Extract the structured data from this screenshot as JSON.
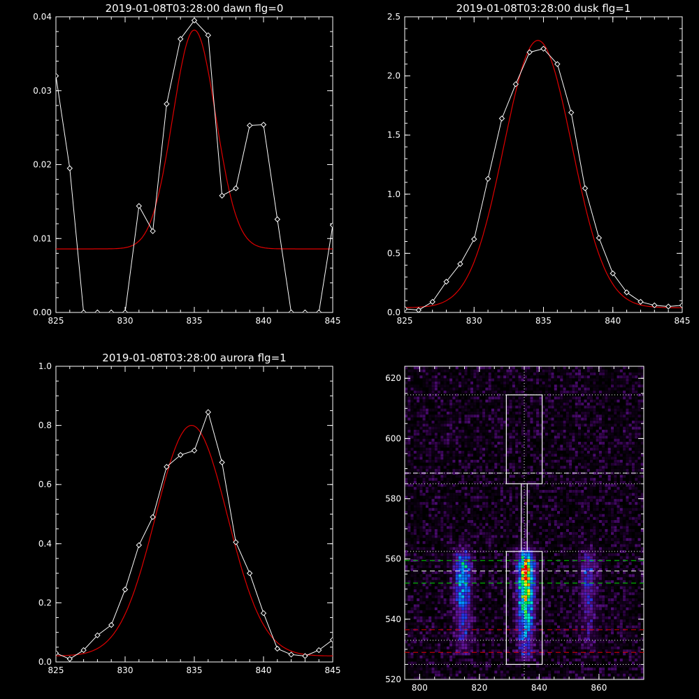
{
  "chart_data": [
    {
      "id": "dawn",
      "type": "line",
      "title": "2019-01-08T03:28:00 dawn flg=0",
      "xlim": [
        825,
        845
      ],
      "ylim": [
        0,
        0.04
      ],
      "xticks": [
        825,
        830,
        835,
        840,
        845
      ],
      "yticks": [
        0.0,
        0.01,
        0.02,
        0.03,
        0.04
      ],
      "ytick_labels": [
        "0.00",
        "0.01",
        "0.02",
        "0.03",
        "0.04"
      ],
      "series": [
        {
          "kind": "data",
          "color": "#ffffff",
          "markers": "diamond",
          "x": [
            825,
            826,
            827,
            828,
            829,
            830,
            831,
            832,
            833,
            834,
            835,
            836,
            837,
            838,
            839,
            840,
            841,
            842,
            843,
            844,
            845
          ],
          "y": [
            0.032,
            0.0195,
            0.0,
            0.0,
            0.0,
            0.0,
            0.0144,
            0.011,
            0.0282,
            0.037,
            0.0395,
            0.0375,
            0.0158,
            0.0168,
            0.0253,
            0.0254,
            0.0126,
            0.0,
            0.0,
            0.0,
            0.0118
          ]
        },
        {
          "kind": "fit",
          "color": "#e00000",
          "gaussian": {
            "amplitude": 0.0296,
            "center": 835.0,
            "sigma": 1.55,
            "offset": 0.0086
          }
        }
      ]
    },
    {
      "id": "dusk",
      "type": "line",
      "title": "2019-01-08T03:28:00 dusk flg=1",
      "xlim": [
        825,
        845
      ],
      "ylim": [
        0,
        2.5
      ],
      "xticks": [
        825,
        830,
        835,
        840,
        845
      ],
      "yticks": [
        0.0,
        0.5,
        1.0,
        1.5,
        2.0,
        2.5
      ],
      "ytick_labels": [
        "0.0",
        "0.5",
        "1.0",
        "1.5",
        "2.0",
        "2.5"
      ],
      "series": [
        {
          "kind": "data",
          "color": "#ffffff",
          "markers": "diamond",
          "x": [
            825,
            826,
            827,
            828,
            829,
            830,
            831,
            832,
            833,
            834,
            835,
            836,
            837,
            838,
            839,
            840,
            841,
            842,
            843,
            844,
            845
          ],
          "y": [
            0.03,
            0.02,
            0.09,
            0.26,
            0.41,
            0.62,
            1.13,
            1.64,
            1.93,
            2.2,
            2.23,
            2.1,
            1.69,
            1.05,
            0.63,
            0.33,
            0.17,
            0.09,
            0.06,
            0.05,
            0.06
          ]
        },
        {
          "kind": "fit",
          "color": "#e00000",
          "gaussian": {
            "amplitude": 2.26,
            "center": 834.6,
            "sigma": 2.45,
            "offset": 0.04
          }
        }
      ]
    },
    {
      "id": "aurora",
      "type": "line",
      "title": "2019-01-08T03:28:00 aurora flg=1",
      "xlim": [
        825,
        845
      ],
      "ylim": [
        0,
        1.0
      ],
      "xticks": [
        825,
        830,
        835,
        840,
        845
      ],
      "yticks": [
        0.0,
        0.2,
        0.4,
        0.6,
        0.8,
        1.0
      ],
      "ytick_labels": [
        "0.0",
        "0.2",
        "0.4",
        "0.6",
        "0.8",
        "1.0"
      ],
      "series": [
        {
          "kind": "data",
          "color": "#ffffff",
          "markers": "diamond",
          "x": [
            825,
            826,
            827,
            828,
            829,
            830,
            831,
            832,
            833,
            834,
            835,
            836,
            837,
            838,
            839,
            840,
            841,
            842,
            843,
            844,
            845
          ],
          "y": [
            0.03,
            0.01,
            0.04,
            0.09,
            0.125,
            0.245,
            0.395,
            0.49,
            0.66,
            0.7,
            0.715,
            0.845,
            0.675,
            0.405,
            0.3,
            0.165,
            0.045,
            0.025,
            0.02,
            0.04,
            0.075
          ]
        },
        {
          "kind": "fit",
          "color": "#e00000",
          "gaussian": {
            "amplitude": 0.78,
            "center": 834.8,
            "sigma": 2.6,
            "offset": 0.02
          }
        }
      ]
    },
    {
      "id": "spectrum-image",
      "type": "heatmap",
      "title": "",
      "xlim": [
        795,
        875
      ],
      "ylim": [
        520,
        624
      ],
      "xticks": [
        800,
        820,
        840,
        860
      ],
      "yticks": [
        520,
        540,
        560,
        580,
        600,
        620
      ],
      "colormap": "rainbow (black-purple-blue-cyan-green-yellow-red)",
      "bands": [
        {
          "center_x": 814,
          "y_range": [
            528,
            566
          ],
          "peak_y": 557,
          "peak_level": 0.55
        },
        {
          "center_x": 835,
          "y_range": [
            526,
            570
          ],
          "peak_y": 557,
          "peak_level": 1.0
        },
        {
          "center_x": 856,
          "y_range": [
            530,
            568
          ],
          "peak_y": 557,
          "peak_level": 0.3
        }
      ],
      "overlays": {
        "vertical_dotted_x": 835,
        "dotted_hlines_y": [
          614.5,
          588.5,
          585,
          562.5,
          533,
          525
        ],
        "white_dashed_y": [
          588.5,
          556
        ],
        "green_dashed_y": [
          559.5,
          552
        ],
        "red_dashed_y": [
          536.5,
          529
        ],
        "white_boxes": [
          {
            "x": [
              829,
              841
            ],
            "y": [
              585,
              614.5
            ]
          },
          {
            "x": [
              829,
              841
            ],
            "y": [
              525,
              562.5
            ]
          }
        ],
        "white_channel": {
          "x": [
            834,
            836
          ],
          "y": [
            562.5,
            585
          ]
        }
      }
    }
  ]
}
